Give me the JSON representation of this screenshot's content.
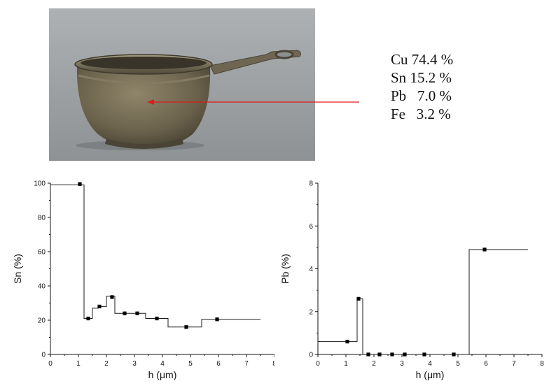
{
  "composition": [
    {
      "element": "Cu",
      "value": "74.4 %"
    },
    {
      "element": "Sn",
      "value": "15.2 %"
    },
    {
      "element": "Pb",
      "value": "  7.0 %"
    },
    {
      "element": "Fe",
      "value": "  3.2 %"
    }
  ],
  "colors": {
    "arrow": "#e01b1b",
    "photo_bg": "#9fa3a5",
    "step_line": "#1a1a1a",
    "marker": "#000000"
  },
  "chart_data": [
    {
      "type": "line",
      "xlabel": "h (μm)",
      "ylabel": "Sn (%)",
      "xlim": [
        0,
        8
      ],
      "ylim": [
        0,
        100
      ],
      "xticks": [
        "0",
        "1",
        "2",
        "3",
        "4",
        "5",
        "6",
        "7",
        "8"
      ],
      "yticks": [
        "0",
        "20",
        "40",
        "60",
        "80",
        "100"
      ],
      "grid": false,
      "step_x": [
        0,
        1.2,
        1.2,
        1.5,
        1.5,
        1.7,
        1.7,
        2.0,
        2.0,
        2.3,
        2.3,
        2.6,
        2.6,
        2.9,
        2.9,
        3.4,
        3.4,
        4.2,
        4.2,
        5.4,
        5.4,
        7.5
      ],
      "step_y": [
        99,
        99,
        21,
        21,
        27,
        27,
        28,
        28,
        34,
        34,
        24,
        24,
        24,
        24,
        24,
        24,
        21,
        21,
        16,
        16,
        20.5,
        20.5
      ],
      "points": [
        {
          "x": 1.05,
          "y": 99.5
        },
        {
          "x": 1.35,
          "y": 21
        },
        {
          "x": 1.75,
          "y": 28
        },
        {
          "x": 2.2,
          "y": 33.5
        },
        {
          "x": 2.65,
          "y": 24
        },
        {
          "x": 3.1,
          "y": 24
        },
        {
          "x": 3.8,
          "y": 21
        },
        {
          "x": 4.85,
          "y": 16
        },
        {
          "x": 5.95,
          "y": 20.5
        }
      ]
    },
    {
      "type": "line",
      "xlabel": "h (μm)",
      "ylabel": "Pb (%)",
      "xlim": [
        0,
        8
      ],
      "ylim": [
        0,
        8
      ],
      "xticks": [
        "0",
        "1",
        "2",
        "3",
        "4",
        "5",
        "6",
        "7",
        "8"
      ],
      "yticks": [
        "0",
        "2",
        "4",
        "6",
        "8"
      ],
      "grid": false,
      "step_x": [
        0,
        1.2,
        1.2,
        1.4,
        1.4,
        1.6,
        1.6,
        5.4,
        5.4,
        7.5
      ],
      "step_y": [
        0.6,
        0.6,
        0.6,
        0.6,
        2.6,
        2.6,
        0,
        0,
        4.9,
        4.9
      ],
      "points": [
        {
          "x": 1.05,
          "y": 0.6
        },
        {
          "x": 1.45,
          "y": 2.6
        },
        {
          "x": 1.8,
          "y": 0
        },
        {
          "x": 2.2,
          "y": 0
        },
        {
          "x": 2.65,
          "y": 0
        },
        {
          "x": 3.1,
          "y": 0
        },
        {
          "x": 3.8,
          "y": 0
        },
        {
          "x": 4.85,
          "y": 0
        },
        {
          "x": 5.95,
          "y": 4.9
        }
      ]
    }
  ]
}
